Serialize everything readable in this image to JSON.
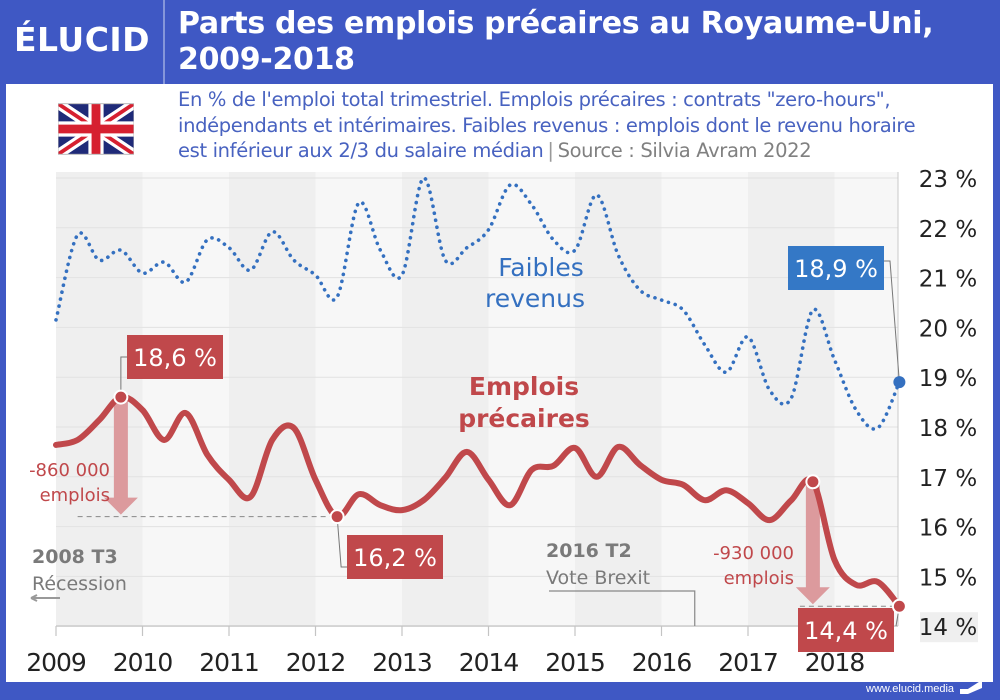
{
  "header": {
    "logo": "ÉLUCID",
    "title_line1": "Parts des emplois précaires au Royaume-Uni,",
    "title_line2": "2009-2018"
  },
  "subtitle": {
    "line1": "En % de l'emploi total trimestriel. Emplois précaires : contrats \"zero-hours\",",
    "line2": "indépendants et intérimaires. Faibles revenus : emplois dont le revenu horaire",
    "line3": "est inférieur aux 2/3 du salaire médian",
    "separator": "|",
    "source": "Source : Silvia Avram 2022"
  },
  "flag_icon": "uk-flag-icon",
  "footer": {
    "url": "www.elucid.media"
  },
  "colors": {
    "brand_blue": "#3f58c4",
    "precarious_red": "#c0484b",
    "low_income_blue": "#3470c0",
    "arrow_pink": "#dc9a9d",
    "annotation_gray": "#7a7a7a"
  },
  "chart_data": {
    "type": "line",
    "title": "Parts des emplois précaires au Royaume-Uni, 2009-2018",
    "xlabel": "",
    "ylabel": "% de l'emploi total trimestriel",
    "xlim": [
      2009,
      2018.75
    ],
    "ylim": [
      14,
      23
    ],
    "y_axis_position": "right",
    "yticks": [
      23,
      22,
      21,
      20,
      19,
      18,
      17,
      16,
      15,
      14
    ],
    "ytick_labels": [
      "23 %",
      "22 %",
      "21 %",
      "20 %",
      "19 %",
      "18 %",
      "17 %",
      "16 %",
      "15 %",
      "14 %"
    ],
    "xticks": [
      2009,
      2010,
      2011,
      2012,
      2013,
      2014,
      2015,
      2016,
      2017,
      2018
    ],
    "xtick_labels": [
      "2009",
      "2010",
      "2011",
      "2012",
      "2013",
      "2014",
      "2015",
      "2016",
      "2017",
      "2018"
    ],
    "grid": true,
    "x": [
      2009.0,
      2009.25,
      2009.5,
      2009.75,
      2010.0,
      2010.25,
      2010.5,
      2010.75,
      2011.0,
      2011.25,
      2011.5,
      2011.75,
      2012.0,
      2012.25,
      2012.5,
      2012.75,
      2013.0,
      2013.25,
      2013.5,
      2013.75,
      2014.0,
      2014.25,
      2014.5,
      2014.75,
      2015.0,
      2015.25,
      2015.5,
      2015.75,
      2016.0,
      2016.25,
      2016.5,
      2016.75,
      2017.0,
      2017.25,
      2017.5,
      2017.75,
      2018.0,
      2018.25,
      2018.5,
      2018.75
    ],
    "series": [
      {
        "name": "Faibles revenus",
        "label_line1": "Faibles",
        "label_line2": "revenus",
        "style": "dotted",
        "color": "#3470c0",
        "values": [
          20.15,
          21.86,
          21.35,
          21.55,
          21.09,
          21.31,
          20.91,
          21.76,
          21.6,
          21.15,
          21.92,
          21.35,
          21.05,
          20.61,
          22.5,
          21.55,
          21.05,
          23.0,
          21.35,
          21.6,
          21.96,
          22.86,
          22.46,
          21.76,
          21.55,
          22.66,
          21.45,
          20.75,
          20.55,
          20.35,
          19.65,
          19.1,
          19.81,
          18.74,
          18.58,
          20.35,
          19.35,
          18.34,
          17.98,
          18.9
        ]
      },
      {
        "name": "Emplois précaires",
        "label_line1": "Emplois",
        "label_line2": "précaires",
        "style": "solid",
        "color": "#c0484b",
        "values": [
          17.64,
          17.74,
          18.14,
          18.6,
          18.34,
          17.74,
          18.28,
          17.44,
          16.94,
          16.6,
          17.74,
          17.98,
          16.94,
          16.2,
          16.65,
          16.43,
          16.33,
          16.53,
          16.98,
          17.5,
          16.94,
          16.43,
          17.14,
          17.22,
          17.58,
          17.0,
          17.6,
          17.24,
          16.94,
          16.84,
          16.53,
          16.73,
          16.47,
          16.13,
          16.53,
          16.9,
          15.33,
          14.83,
          14.89,
          14.4
        ]
      }
    ],
    "annotations": {
      "callouts": [
        {
          "series": "Emplois précaires",
          "x": 2009.75,
          "value": 18.6,
          "label": "18,6 %",
          "position": "above-right"
        },
        {
          "series": "Emplois précaires",
          "x": 2012.25,
          "value": 16.2,
          "label": "16,2 %",
          "position": "below-right"
        },
        {
          "series": "Emplois précaires",
          "x": 2018.75,
          "value": 14.4,
          "label": "14,4 %",
          "position": "below-left"
        },
        {
          "series": "Faibles revenus",
          "x": 2018.75,
          "value": 18.9,
          "label": "18,9 %",
          "position": "above-left"
        }
      ],
      "drops": [
        {
          "from_x": 2009.75,
          "from_value": 18.6,
          "to_value": 16.2,
          "label_line1": "-860 000",
          "label_line2": "emplois"
        },
        {
          "from_x": 2017.75,
          "from_value": 16.9,
          "to_value": 14.4,
          "label_line1": "-930 000",
          "label_line2": "emplois"
        }
      ],
      "events": [
        {
          "title": "2008 T3",
          "subtitle": "Récession",
          "direction": "left (before chart start)"
        },
        {
          "title": "2016 T2",
          "subtitle": "Vote Brexit",
          "x": 2016.5
        }
      ]
    }
  }
}
